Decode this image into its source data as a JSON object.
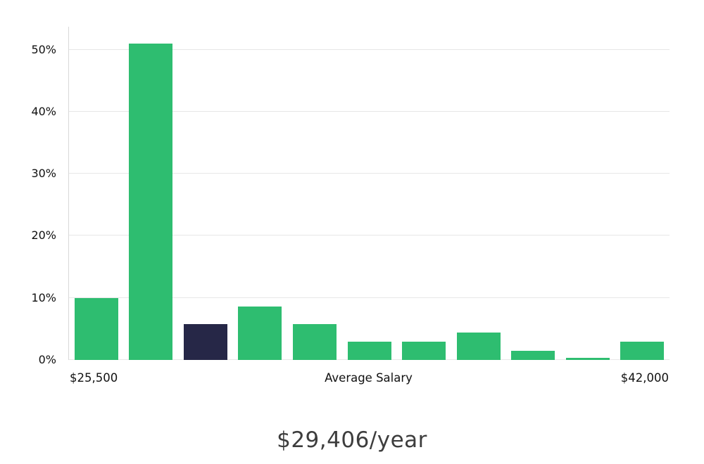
{
  "chart_data": {
    "type": "bar",
    "title": "$29,406/year",
    "x_axis_labels": {
      "left": "$25,500",
      "center": "Average Salary",
      "right": "$42,000"
    },
    "y_ticks": [
      {
        "label": "0%",
        "value": 0
      },
      {
        "label": "10%",
        "value": 10
      },
      {
        "label": "20%",
        "value": 20
      },
      {
        "label": "30%",
        "value": 30
      },
      {
        "label": "40%",
        "value": 40
      },
      {
        "label": "50%",
        "value": 50
      }
    ],
    "ylim": [
      0,
      53.7
    ],
    "values": [
      10,
      51,
      5.8,
      8.6,
      5.8,
      2.9,
      2.9,
      4.4,
      1.5,
      0.3,
      2.9
    ],
    "highlight_index": 2,
    "bar_color": "#2ebd70",
    "highlight_color": "#262747",
    "grid": true,
    "legend": "none"
  }
}
